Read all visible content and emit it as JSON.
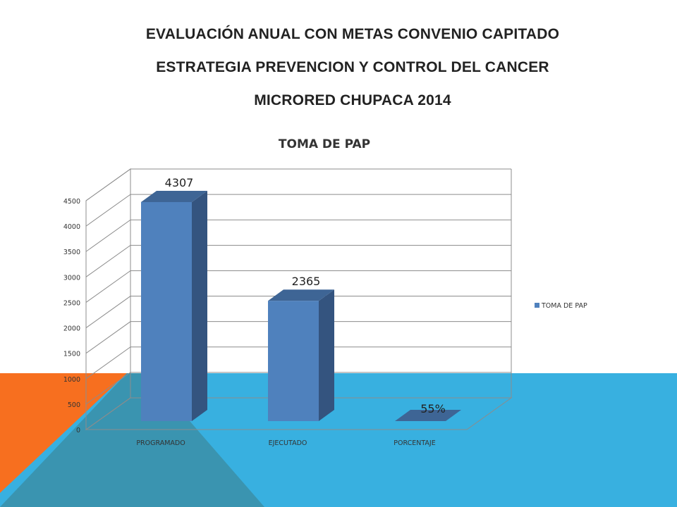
{
  "slide": {
    "heading_line1": "EVALUACIÓN  ANUAL CON METAS CONVENIO CAPITADO",
    "heading_line2": "ESTRATEGIA PREVENCION  Y CONTROL DEL CANCER",
    "heading_line3": "MICRORED CHUPACA  2014",
    "colors": {
      "orange": "#f76f1f",
      "blue": "#38b0e0",
      "teal": "#3a94b0"
    }
  },
  "chart_data": {
    "type": "bar",
    "title": "TOMA DE PAP",
    "categories": [
      "PROGRAMADO",
      "EJECUTADO",
      "PORCENTAJE"
    ],
    "series": [
      {
        "name": "TOMA DE PAP",
        "values": [
          4307,
          2365,
          0.55
        ],
        "data_labels": [
          "4307",
          "2365",
          "55%"
        ],
        "color": "#4f81bd"
      }
    ],
    "ylim": [
      0,
      4500
    ],
    "yticks": [
      0,
      500,
      1000,
      1500,
      2000,
      2500,
      3000,
      3500,
      4000,
      4500
    ],
    "grid": true,
    "legend": "right",
    "three_d": true
  }
}
